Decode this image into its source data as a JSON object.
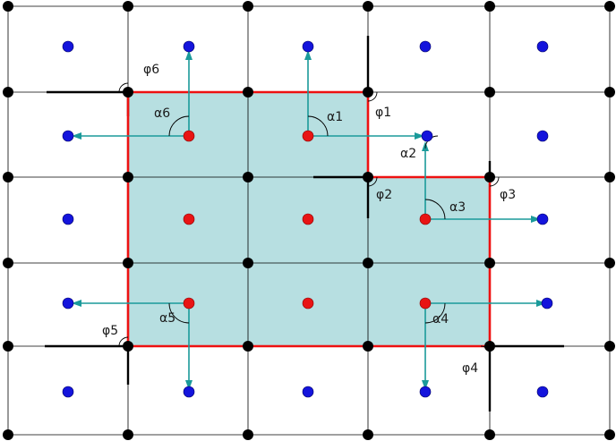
{
  "colors": {
    "background": "#ffffff",
    "grid_line": "#000000",
    "node": "#000000",
    "outside_point": "#1414dc",
    "inside_point": "#e81414",
    "region_fill": "#b7dfe1",
    "region_border": "#ee1111",
    "arrow": "#1a9a9a"
  },
  "labels": {
    "phi1": "φ1",
    "phi2": "φ2",
    "phi3": "φ3",
    "phi4": "φ4",
    "phi5": "φ5",
    "phi6": "φ6",
    "alpha1": "α1",
    "alpha2": "α2",
    "alpha3": "α3",
    "alpha4": "α4",
    "alpha5": "α5",
    "alpha6": "α6"
  }
}
